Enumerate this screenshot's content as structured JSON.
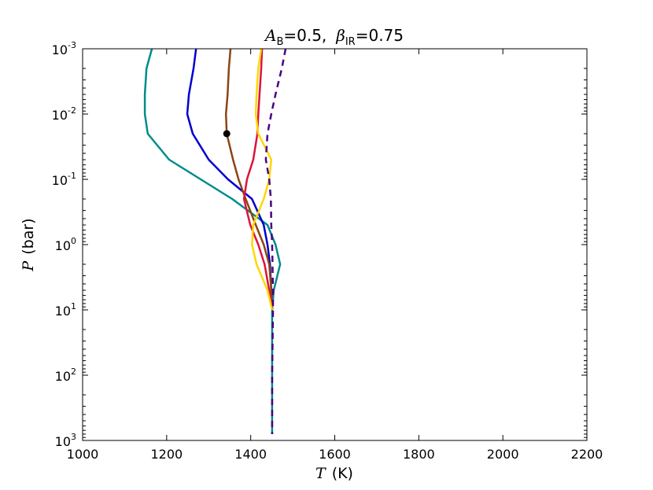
{
  "chart_data": {
    "type": "line",
    "title": {
      "prefix": "A",
      "prefix_sub": "B",
      "eq1": "=0.5,",
      "beta": "β",
      "beta_sub": "IR",
      "eq2": "=0.75"
    },
    "xlabel": {
      "var": "T",
      "unit": "(K)"
    },
    "ylabel": {
      "var": "P",
      "unit": "(bar)"
    },
    "xlim": [
      1000,
      2200
    ],
    "ylim": [
      1000,
      0.001
    ],
    "yscale": "log",
    "y_inverted": true,
    "grid": false,
    "xticks": [
      1000,
      1200,
      1400,
      1600,
      1800,
      2000,
      2200
    ],
    "xtick_labels": [
      "1000",
      "1200",
      "1400",
      "1600",
      "1800",
      "2000",
      "2200"
    ],
    "yticks": [
      {
        "value": 0.001,
        "base": "10",
        "exp": "-3"
      },
      {
        "value": 0.01,
        "base": "10",
        "exp": "-2"
      },
      {
        "value": 0.1,
        "base": "10",
        "exp": "-1"
      },
      {
        "value": 1,
        "base": "10",
        "exp": "0"
      },
      {
        "value": 10,
        "base": "10",
        "exp": "1"
      },
      {
        "value": 100,
        "base": "10",
        "exp": "2"
      },
      {
        "value": 1000,
        "base": "10",
        "exp": "3"
      }
    ],
    "series": [
      {
        "color": "#008b8b",
        "style": "solid",
        "points": [
          [
            1165,
            0.001
          ],
          [
            1152,
            0.002
          ],
          [
            1148,
            0.005
          ],
          [
            1148,
            0.01
          ],
          [
            1155,
            0.02
          ],
          [
            1206,
            0.05
          ],
          [
            1281,
            0.1
          ],
          [
            1356,
            0.2
          ],
          [
            1440,
            0.5
          ],
          [
            1459,
            1
          ],
          [
            1470,
            2
          ],
          [
            1455,
            5
          ],
          [
            1451,
            10
          ],
          [
            1451,
            100
          ],
          [
            1451,
            800
          ]
        ]
      },
      {
        "color": "#0000cd",
        "style": "solid",
        "points": [
          [
            1270,
            0.001
          ],
          [
            1264,
            0.002
          ],
          [
            1253,
            0.005
          ],
          [
            1249,
            0.01
          ],
          [
            1262,
            0.02
          ],
          [
            1300,
            0.05
          ],
          [
            1346,
            0.1
          ],
          [
            1403,
            0.2
          ],
          [
            1431,
            0.5
          ],
          [
            1440,
            1
          ],
          [
            1446,
            2
          ],
          [
            1449,
            5
          ],
          [
            1451,
            10
          ]
        ]
      },
      {
        "color": "#8b4513",
        "style": "solid",
        "points": [
          [
            1352,
            0.001
          ],
          [
            1348,
            0.002
          ],
          [
            1345,
            0.005
          ],
          [
            1341,
            0.01
          ],
          [
            1343,
            0.02
          ],
          [
            1358,
            0.05
          ],
          [
            1371,
            0.1
          ],
          [
            1388,
            0.2
          ],
          [
            1412,
            0.5
          ],
          [
            1431,
            1
          ],
          [
            1444,
            2
          ],
          [
            1449,
            5
          ],
          [
            1451,
            10
          ]
        ]
      },
      {
        "color": "#dc143c",
        "style": "solid",
        "points": [
          [
            1427,
            0.001
          ],
          [
            1425,
            0.002
          ],
          [
            1421,
            0.005
          ],
          [
            1418,
            0.01
          ],
          [
            1416,
            0.02
          ],
          [
            1406,
            0.05
          ],
          [
            1391,
            0.1
          ],
          [
            1384,
            0.2
          ],
          [
            1399,
            0.5
          ],
          [
            1418,
            1
          ],
          [
            1433,
            2
          ],
          [
            1444,
            5
          ],
          [
            1451,
            10
          ]
        ]
      },
      {
        "color": "#ffd700",
        "style": "solid",
        "points": [
          [
            1425,
            0.001
          ],
          [
            1418,
            0.002
          ],
          [
            1414,
            0.005
          ],
          [
            1412,
            0.01
          ],
          [
            1418,
            0.02
          ],
          [
            1449,
            0.05
          ],
          [
            1444,
            0.1
          ],
          [
            1431,
            0.2
          ],
          [
            1406,
            0.5
          ],
          [
            1403,
            1
          ],
          [
            1414,
            2
          ],
          [
            1440,
            5
          ],
          [
            1451,
            10
          ]
        ]
      },
      {
        "color": "#4b0082",
        "style": "dashed",
        "points": [
          [
            1483,
            0.001
          ],
          [
            1474,
            0.002
          ],
          [
            1459,
            0.005
          ],
          [
            1449,
            0.01
          ],
          [
            1440,
            0.02
          ],
          [
            1436,
            0.05
          ],
          [
            1444,
            0.1
          ],
          [
            1448,
            0.2
          ],
          [
            1449,
            0.5
          ],
          [
            1451,
            1
          ],
          [
            1453,
            5
          ],
          [
            1453,
            10
          ],
          [
            1451,
            100
          ],
          [
            1451,
            800
          ]
        ]
      }
    ],
    "markers": [
      {
        "color": "#000000",
        "point": [
          1343,
          0.02
        ]
      }
    ]
  }
}
